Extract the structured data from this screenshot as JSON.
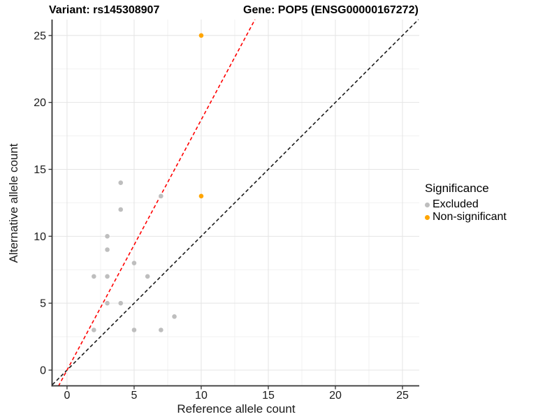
{
  "titles": {
    "variant": "Variant: rs145308907",
    "gene": "Gene: POP5 (ENSG00000167272)"
  },
  "axes": {
    "x_label": "Reference allele count",
    "y_label": "Alternative allele count"
  },
  "legend": {
    "title": "Significance",
    "items": [
      {
        "label": "Excluded",
        "color": "#BEBEBE"
      },
      {
        "label": "Non-significant",
        "color": "#FFA500"
      }
    ]
  },
  "chart_data": {
    "type": "scatter",
    "title_left": "Variant: rs145308907",
    "title_right": "Gene: POP5 (ENSG00000167272)",
    "xlabel": "Reference allele count",
    "ylabel": "Alternative allele count",
    "xlim": [
      -1.09,
      26.25
    ],
    "ylim": [
      -1.2,
      26.19
    ],
    "x_ticks": [
      0,
      5,
      10,
      15,
      20,
      25
    ],
    "y_ticks": [
      0,
      5,
      10,
      15,
      20,
      25
    ],
    "grid": true,
    "legend_position": "right",
    "series": [
      {
        "name": "Excluded",
        "color": "#BEBEBE",
        "points": [
          [
            2,
            3
          ],
          [
            2,
            7
          ],
          [
            3,
            5
          ],
          [
            3,
            7
          ],
          [
            3,
            9
          ],
          [
            3,
            10
          ],
          [
            4,
            5
          ],
          [
            4,
            12
          ],
          [
            4,
            14
          ],
          [
            5,
            3
          ],
          [
            5,
            8
          ],
          [
            6,
            7
          ],
          [
            7,
            3
          ],
          [
            7,
            13
          ],
          [
            8,
            4
          ]
        ]
      },
      {
        "name": "Non-significant",
        "color": "#FFA500",
        "points": [
          [
            10,
            13
          ],
          [
            10,
            25
          ]
        ]
      }
    ],
    "lines": [
      {
        "name": "identity-line",
        "slope": 1.0,
        "intercept": 0,
        "color": "#1a1a1a",
        "dashed": true
      },
      {
        "name": "threshold-line",
        "slope": 1.87,
        "intercept": 0,
        "color": "#FF0000",
        "dashed": true
      }
    ]
  },
  "colors": {
    "background": "#ffffff",
    "grid_major": "#e4e4e4",
    "grid_minor": "#f1f1f1",
    "axis_line": "#333333",
    "tick_text": "#1a1a1a"
  }
}
